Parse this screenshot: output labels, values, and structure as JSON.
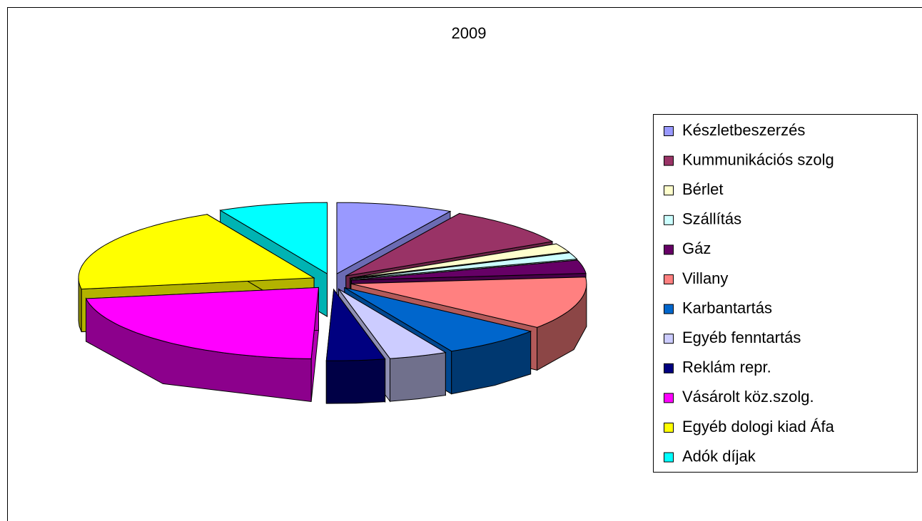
{
  "chart_data": {
    "type": "pie3d",
    "title": "2009",
    "categories": [
      "Készletbeszerzés",
      "Kummunikációs szolg",
      "Bérlet",
      "Szállítás",
      "Gáz",
      "Villany",
      "Karbantartás",
      "Egyéb fenntartás",
      "Reklám repr.",
      "Vásárolt köz.szolg.",
      "Egyéb dologi kiad Áfa",
      "Adók díjak"
    ],
    "values": [
      8,
      9,
      2,
      1.5,
      3,
      12,
      7,
      4,
      4,
      22,
      20,
      7.5
    ],
    "colors": [
      "#9999FF",
      "#993366",
      "#FFFFCC",
      "#CCFFFF",
      "#660066",
      "#FF8080",
      "#0066CC",
      "#CCCCFF",
      "#000080",
      "#FF00FF",
      "#FFFF00",
      "#00FFFF"
    ],
    "legend": "right"
  }
}
